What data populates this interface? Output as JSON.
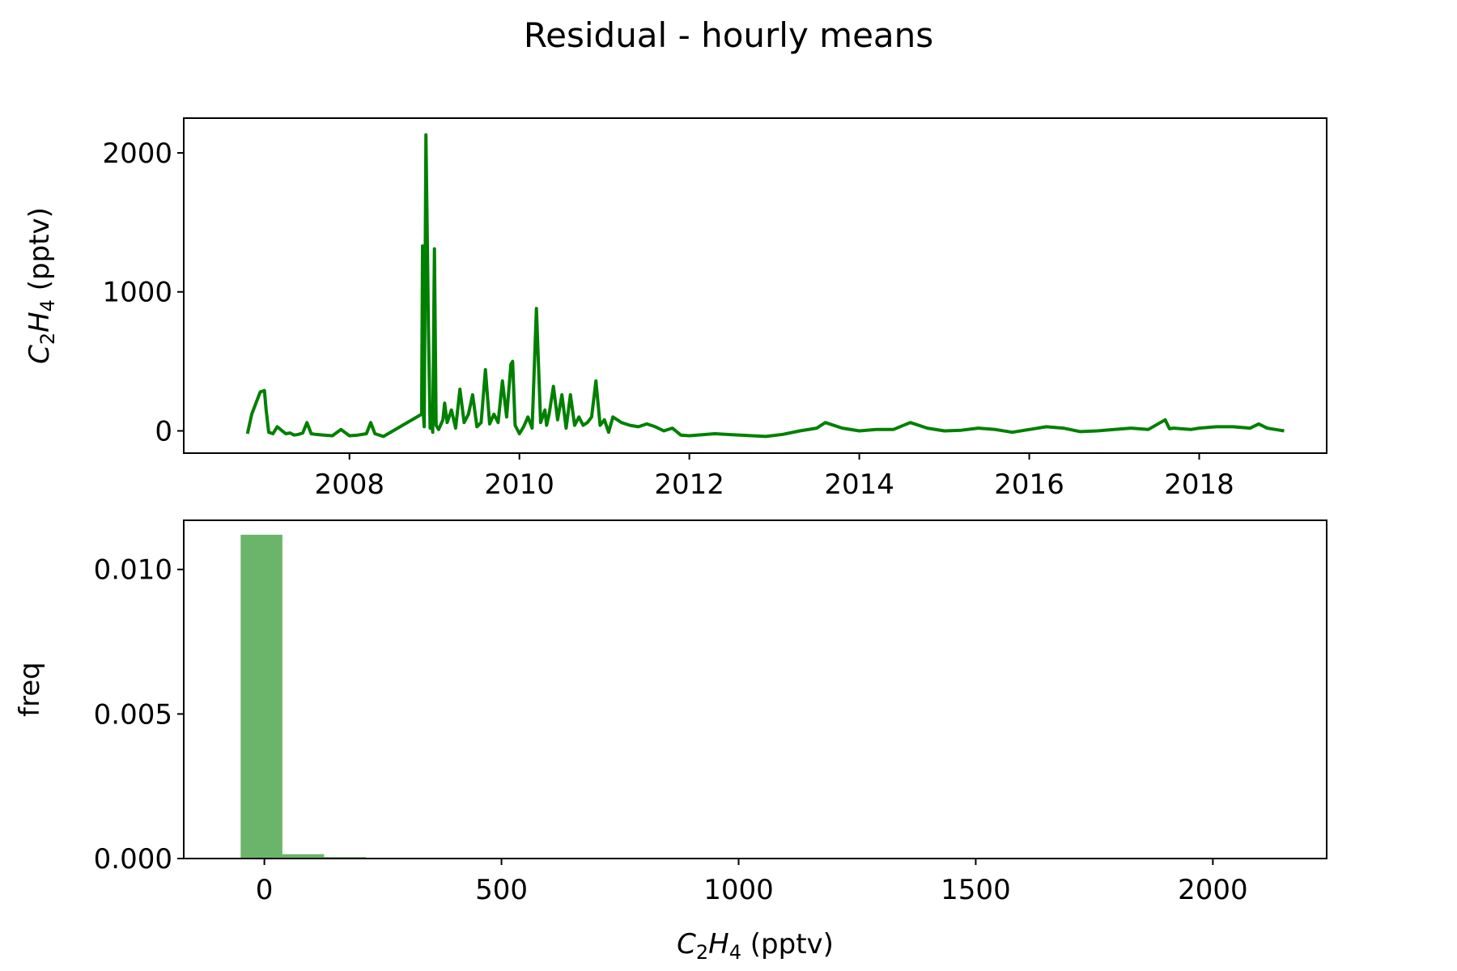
{
  "figure_title": "Residual - hourly means",
  "colors": {
    "line": "#008000",
    "hist": "#008000",
    "hist_alpha": 0.58
  },
  "chart_data": [
    {
      "type": "line",
      "title": "",
      "xlabel": "",
      "ylabel": "C2H4 (pptv)",
      "ylabel_parts": {
        "main": "C",
        "sub1": "2",
        "mid": "H",
        "sub2": "4",
        "unit": " (pptv)"
      },
      "xlim": [
        2006.05,
        2019.5
      ],
      "ylim": [
        -160,
        2250
      ],
      "xticks": [
        2008,
        2010,
        2012,
        2014,
        2016,
        2018
      ],
      "xtick_labels": [
        "2008",
        "2010",
        "2012",
        "2014",
        "2016",
        "2018"
      ],
      "yticks": [
        0,
        1000,
        2000
      ],
      "ytick_labels": [
        "0",
        "1000",
        "2000"
      ],
      "grid": false,
      "series": [
        {
          "x": [
            2006.8,
            2006.85,
            2006.9,
            2006.95,
            2007.0,
            2007.02,
            2007.05,
            2007.1,
            2007.15,
            2007.2,
            2007.25,
            2007.3,
            2007.35,
            2007.4,
            2007.45,
            2007.5,
            2007.55,
            2007.6,
            2007.7,
            2007.8,
            2007.9,
            2008.0,
            2008.1,
            2008.2,
            2008.25,
            2008.3,
            2008.4,
            2008.85,
            2008.86,
            2008.87,
            2008.88,
            2008.9,
            2008.93,
            2008.95,
            2008.96,
            2008.98,
            2009.0,
            2009.02,
            2009.05,
            2009.1,
            2009.12,
            2009.15,
            2009.2,
            2009.25,
            2009.3,
            2009.35,
            2009.4,
            2009.45,
            2009.5,
            2009.55,
            2009.6,
            2009.65,
            2009.7,
            2009.75,
            2009.8,
            2009.85,
            2009.9,
            2009.92,
            2009.95,
            2010.0,
            2010.05,
            2010.1,
            2010.15,
            2010.2,
            2010.25,
            2010.3,
            2010.32,
            2010.35,
            2010.4,
            2010.45,
            2010.5,
            2010.55,
            2010.6,
            2010.65,
            2010.7,
            2010.75,
            2010.8,
            2010.85,
            2010.9,
            2010.95,
            2011.0,
            2011.05,
            2011.1,
            2011.2,
            2011.3,
            2011.4,
            2011.5,
            2011.6,
            2011.7,
            2011.8,
            2011.9,
            2012.0,
            2012.3,
            2012.6,
            2012.9,
            2013.1,
            2013.3,
            2013.5,
            2013.6,
            2013.8,
            2014.0,
            2014.2,
            2014.4,
            2014.6,
            2014.8,
            2015.0,
            2015.2,
            2015.4,
            2015.6,
            2015.8,
            2016.0,
            2016.2,
            2016.4,
            2016.6,
            2016.8,
            2017.0,
            2017.2,
            2017.4,
            2017.6,
            2017.65,
            2017.7,
            2017.9,
            2018.0,
            2018.2,
            2018.4,
            2018.6,
            2018.7,
            2018.8,
            2018.9,
            2018.95,
            2019.0
          ],
          "y": [
            -20,
            120,
            200,
            280,
            290,
            150,
            -10,
            -20,
            30,
            5,
            -20,
            -15,
            -30,
            -25,
            -15,
            60,
            -20,
            -25,
            -30,
            -35,
            10,
            -35,
            -30,
            -20,
            60,
            -20,
            -40,
            120,
            1330,
            120,
            30,
            2130,
            740,
            20,
            100,
            -10,
            1310,
            40,
            10,
            80,
            200,
            60,
            150,
            20,
            300,
            60,
            120,
            260,
            30,
            60,
            440,
            50,
            120,
            60,
            360,
            100,
            480,
            500,
            40,
            -20,
            30,
            100,
            20,
            880,
            60,
            150,
            40,
            120,
            320,
            80,
            260,
            20,
            260,
            40,
            100,
            40,
            60,
            100,
            360,
            40,
            80,
            -10,
            100,
            60,
            40,
            30,
            50,
            30,
            0,
            20,
            -30,
            -35,
            -20,
            -30,
            -40,
            -25,
            0,
            20,
            60,
            20,
            0,
            10,
            10,
            60,
            20,
            0,
            5,
            20,
            10,
            -10,
            10,
            30,
            20,
            -5,
            0,
            10,
            20,
            10,
            80,
            15,
            20,
            10,
            20,
            30,
            30,
            20,
            50,
            20,
            10,
            5,
            0
          ],
          "color": "#008000"
        }
      ]
    },
    {
      "type": "histogram",
      "title": "",
      "xlabel": "C2H4 (pptv)",
      "xlabel_parts": {
        "main": "C",
        "sub1": "2",
        "mid": "H",
        "sub2": "4",
        "unit": " (pptv)"
      },
      "ylabel": "freq",
      "xlim": [
        -170,
        2240
      ],
      "ylim": [
        0,
        0.0117
      ],
      "xticks": [
        0,
        500,
        1000,
        1500,
        2000
      ],
      "xtick_labels": [
        "0",
        "500",
        "1000",
        "1500",
        "2000"
      ],
      "yticks": [
        0,
        0.005,
        0.01
      ],
      "ytick_labels": [
        "0.000",
        "0.005",
        "0.010"
      ],
      "grid": false,
      "bin_edges": [
        -50,
        38,
        126,
        214
      ],
      "values": [
        0.0112,
        0.00015,
        5e-05
      ]
    }
  ]
}
